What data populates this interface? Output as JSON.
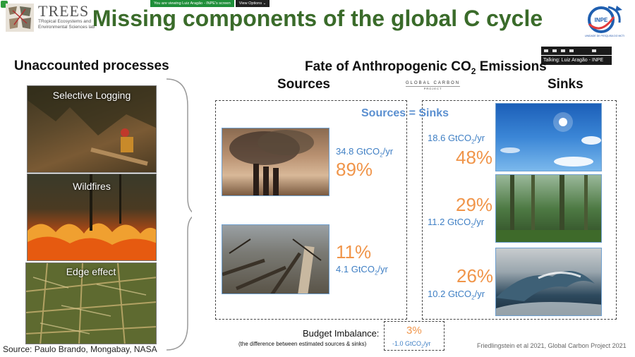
{
  "meeting": {
    "viewing_banner": "You are viewing Luiz Aragão - INPE's screen",
    "view_options": "View Options",
    "talking": "Talking: Luiz Aragão - INPE"
  },
  "header": {
    "logo_title": "TREES",
    "logo_sub_line1": "TRopical Ecosystems and",
    "logo_sub_line2": "Environmental Sciences lab",
    "title": "Missing components of the global C cycle",
    "inpe_label": "INPE",
    "inpe_caption": "UNIDADE DE PESQUISA DO MCTI"
  },
  "left": {
    "heading": "Unaccounted processes",
    "photos": [
      {
        "label": "Selective Logging"
      },
      {
        "label": "Wildfires"
      },
      {
        "label": "Edge effect"
      }
    ],
    "source_credit": "Source: Paulo Brando, Mongabay, NASA"
  },
  "main": {
    "fate_title_prefix": "Fate of Anthropogenic CO",
    "fate_title_sub": "2",
    "fate_title_suffix": " Emissions",
    "sources_heading": "Sources",
    "sinks_heading": "Sinks",
    "gcp_top": "GLOBAL CARBON",
    "gcp_bottom": "PROJECT",
    "equation": "Sources = Sinks",
    "unit_prefix": "GtCO",
    "unit_sub": "2",
    "unit_suffix": "/yr",
    "sources": [
      {
        "value": "34.8",
        "pct": "89%"
      },
      {
        "value": "4.1",
        "pct": "11%"
      }
    ],
    "sinks": [
      {
        "value": "18.6",
        "pct": "48%"
      },
      {
        "value": "11.2",
        "pct": "29%"
      },
      {
        "value": "10.2",
        "pct": "26%"
      }
    ],
    "budget_label": "Budget Imbalance:",
    "budget_sub": "(the difference between estimated sources & sinks)",
    "budget_pct": "3%",
    "budget_value": "-1.0",
    "citation": "Friedlingstein et al 2021, Global Carbon Project 2021"
  },
  "colors": {
    "title_green": "#3a6b2a",
    "value_blue": "#3f7fc4",
    "pct_orange": "#f0954a"
  }
}
